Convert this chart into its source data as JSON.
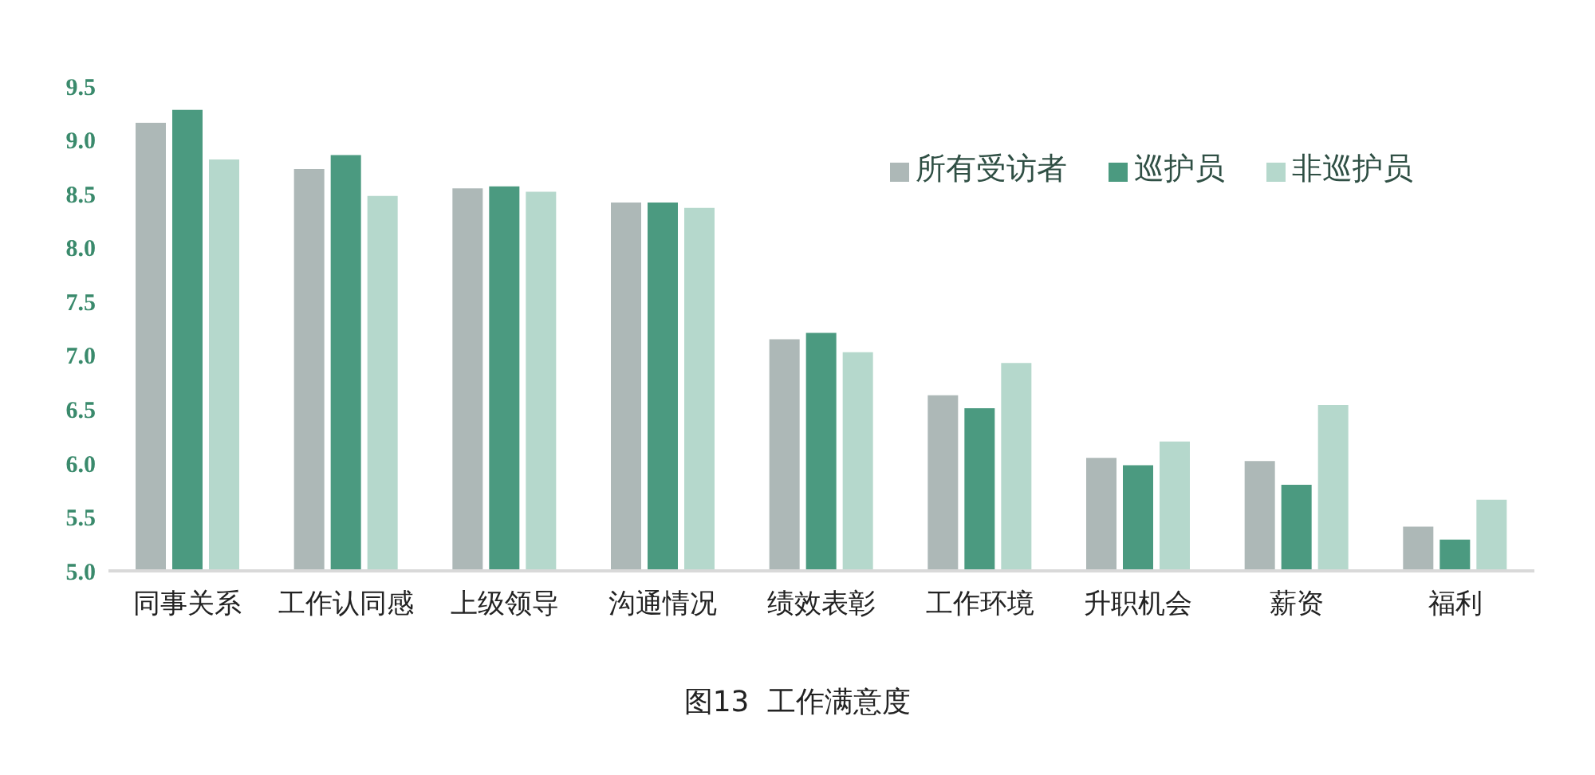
{
  "chart_data": {
    "type": "bar",
    "categories": [
      "同事关系",
      "工作认同感",
      "上级领导",
      "沟通情况",
      "绩效表彰",
      "工作环境",
      "升职机会",
      "薪资",
      "福利"
    ],
    "series": [
      {
        "name": "所有受访者",
        "color": "#adb8b7",
        "values": [
          9.16,
          8.73,
          8.55,
          8.42,
          7.15,
          6.63,
          6.05,
          6.02,
          5.41
        ]
      },
      {
        "name": "巡护员",
        "color": "#4b9a80",
        "values": [
          9.28,
          8.86,
          8.57,
          8.42,
          7.21,
          6.51,
          5.98,
          5.8,
          5.29
        ]
      },
      {
        "name": "非巡护员",
        "color": "#b5d8cc",
        "values": [
          8.82,
          8.48,
          8.52,
          8.37,
          7.03,
          6.93,
          6.2,
          6.54,
          5.66
        ]
      }
    ],
    "ylim": [
      5,
      9.5
    ],
    "yticks": [
      {
        "value": 5,
        "label": "5.0"
      },
      {
        "value": 5.5,
        "label": "5.5"
      },
      {
        "value": 6,
        "label": "6.0"
      },
      {
        "value": 6.5,
        "label": "6.5"
      },
      {
        "value": 7,
        "label": "7.0"
      },
      {
        "value": 7.5,
        "label": "7.5"
      },
      {
        "value": 8,
        "label": "8.0"
      },
      {
        "value": 8.5,
        "label": "8.5"
      },
      {
        "value": 9,
        "label": "9.0"
      },
      {
        "value": 9.5,
        "label": "9.5"
      }
    ],
    "grid": false,
    "legend": "top right",
    "annotations": [
      "图13  工作满意度"
    ]
  }
}
